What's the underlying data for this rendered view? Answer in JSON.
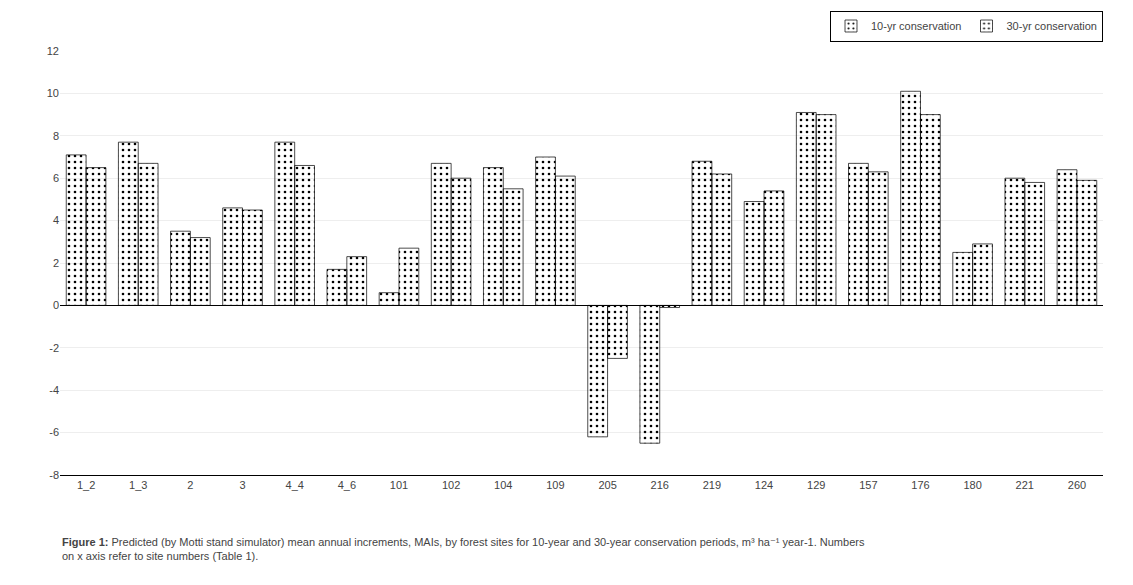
{
  "chart_data": {
    "type": "bar",
    "categories": [
      "1_2",
      "1_3",
      "2",
      "3",
      "4_4",
      "4_6",
      "101",
      "102",
      "104",
      "109",
      "205",
      "216",
      "219",
      "124",
      "129",
      "157",
      "176",
      "180",
      "221",
      "260"
    ],
    "series": [
      {
        "name": "10-yr conservation",
        "color": "#d8d8d8",
        "values": [
          7.1,
          7.7,
          3.5,
          4.6,
          7.7,
          1.7,
          0.6,
          6.7,
          6.5,
          7.0,
          -6.2,
          -6.5,
          6.8,
          4.9,
          9.1,
          6.7,
          10.1,
          2.5,
          6.0,
          6.4
        ]
      },
      {
        "name": "30-yr conservation",
        "color": "#909090",
        "values": [
          6.5,
          6.7,
          3.2,
          4.5,
          6.6,
          2.3,
          2.7,
          6.0,
          5.5,
          6.1,
          -2.5,
          -0.1,
          6.2,
          5.4,
          9.0,
          6.3,
          9.0,
          2.9,
          5.8,
          5.9
        ]
      }
    ],
    "ylim": [
      -8,
      12
    ],
    "yticks": [
      -8,
      -6,
      -4,
      -2,
      0,
      2,
      4,
      6,
      8,
      10,
      12
    ],
    "grid": true,
    "legend": "upper right",
    "annotations": [
      "Figure 1:",
      " Predicted (by Motti stand simulator) mean annual increments, MAIs, by forest sites for 10-year and 30-year conservation periods, m³ ha⁻¹ year-1. Numbers\non x axis refer to site numbers (Table 1)."
    ]
  }
}
